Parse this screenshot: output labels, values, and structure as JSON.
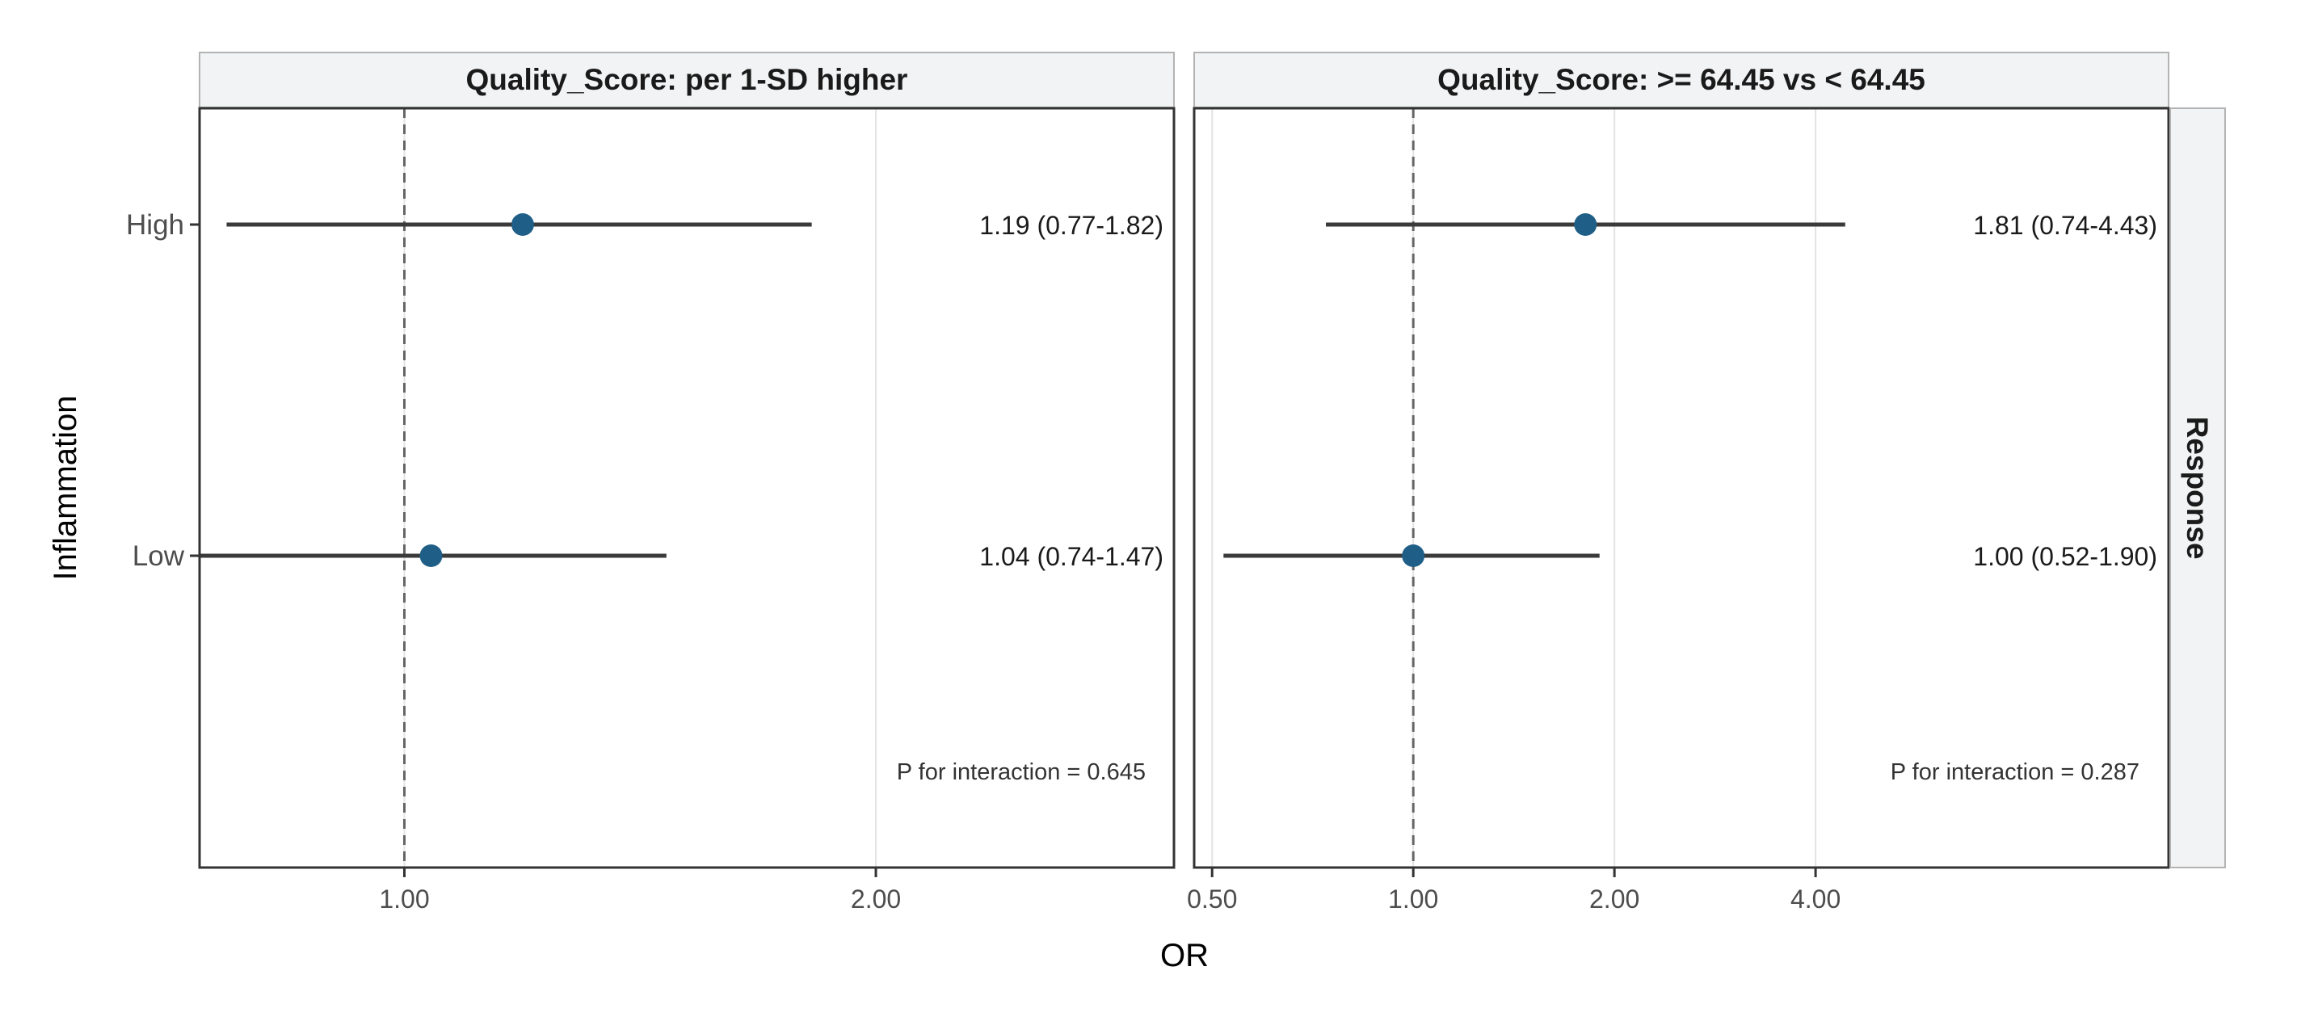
{
  "chart_data": {
    "type": "forest",
    "xlabel": "OR",
    "ylabel": "Inflammation",
    "row_strip": "Response",
    "x_scale": "log",
    "reference_line": 1.0,
    "categories": [
      "High",
      "Low"
    ],
    "point_color": "#1f5f87",
    "panels": [
      {
        "title": "Quality_Score: per 1-SD higher",
        "xlim": [
          0.74,
          3.1
        ],
        "ticks": [
          1.0,
          2.0
        ],
        "tick_labels": [
          "1.00",
          "2.00"
        ],
        "rows": [
          {
            "group": "High",
            "or": 1.19,
            "lower": 0.77,
            "upper": 1.82,
            "label": "1.19 (0.77-1.82)"
          },
          {
            "group": "Low",
            "or": 1.04,
            "lower": 0.74,
            "upper": 1.47,
            "label": "1.04 (0.74-1.47)"
          }
        ],
        "p_interaction": "P for interaction = 0.645"
      },
      {
        "title": "Quality_Score: >= 64.45 vs < 64.45",
        "xlim": [
          0.47,
          13.5
        ],
        "ticks": [
          0.5,
          1.0,
          2.0,
          4.0
        ],
        "tick_labels": [
          "0.50",
          "1.00",
          "2.00",
          "4.00"
        ],
        "rows": [
          {
            "group": "High",
            "or": 1.81,
            "lower": 0.74,
            "upper": 4.43,
            "label": "1.81 (0.74-4.43)"
          },
          {
            "group": "Low",
            "or": 1.0,
            "lower": 0.52,
            "upper": 1.9,
            "label": "1.00 (0.52-1.90)"
          }
        ],
        "p_interaction": "P for interaction = 0.287"
      }
    ]
  }
}
